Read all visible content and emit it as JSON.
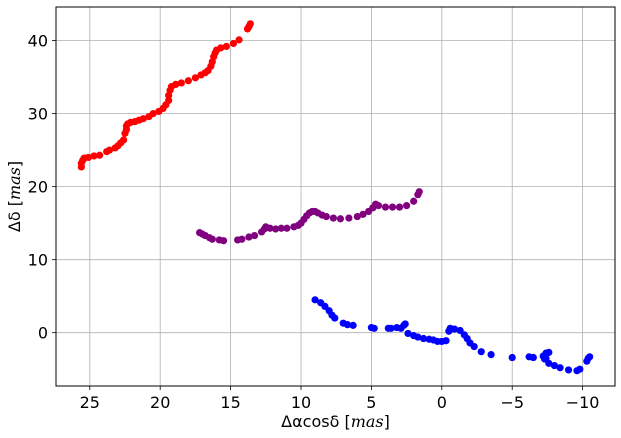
{
  "chart_data": {
    "type": "scatter",
    "title": "",
    "xlabel": {
      "prefix": "Δα",
      "mid": "cosδ",
      "unit": "mas"
    },
    "ylabel": {
      "prefix": "Δδ",
      "unit": "mas"
    },
    "x_inverted": true,
    "xlim": [
      27.4,
      -12.3
    ],
    "ylim": [
      -7.3,
      44.6
    ],
    "xticks": [
      25,
      20,
      15,
      10,
      5,
      0,
      -5,
      -10
    ],
    "xtick_labels": [
      "25",
      "20",
      "15",
      "10",
      "5",
      "0",
      "−5",
      "−10"
    ],
    "yticks": [
      0,
      10,
      20,
      30,
      40
    ],
    "ytick_labels": [
      "0",
      "10",
      "20",
      "30",
      "40"
    ],
    "grid": true,
    "legend": "none",
    "series": [
      {
        "color": "#ff0000",
        "points": [
          [
            25.6,
            22.7
          ],
          [
            25.6,
            23.2
          ],
          [
            25.5,
            23.6
          ],
          [
            25.4,
            23.9
          ],
          [
            25.1,
            24.0
          ],
          [
            24.7,
            24.2
          ],
          [
            24.3,
            24.3
          ],
          [
            23.8,
            24.8
          ],
          [
            23.6,
            25.0
          ],
          [
            23.2,
            25.3
          ],
          [
            23.0,
            25.6
          ],
          [
            22.8,
            26.0
          ],
          [
            22.6,
            26.4
          ],
          [
            22.5,
            27.3
          ],
          [
            22.4,
            27.8
          ],
          [
            22.4,
            28.3
          ],
          [
            22.3,
            28.6
          ],
          [
            22.1,
            28.8
          ],
          [
            21.8,
            28.9
          ],
          [
            21.5,
            29.1
          ],
          [
            21.2,
            29.3
          ],
          [
            20.8,
            29.6
          ],
          [
            20.5,
            30.0
          ],
          [
            20.1,
            30.3
          ],
          [
            19.8,
            30.7
          ],
          [
            19.6,
            31.2
          ],
          [
            19.4,
            31.8
          ],
          [
            19.4,
            32.5
          ],
          [
            19.3,
            33.2
          ],
          [
            19.2,
            33.7
          ],
          [
            18.9,
            34.0
          ],
          [
            18.5,
            34.2
          ],
          [
            18.0,
            34.5
          ],
          [
            17.5,
            34.9
          ],
          [
            17.1,
            35.3
          ],
          [
            16.8,
            35.6
          ],
          [
            16.6,
            35.9
          ],
          [
            16.4,
            36.5
          ],
          [
            16.3,
            37.1
          ],
          [
            16.2,
            37.8
          ],
          [
            16.1,
            38.3
          ],
          [
            16.0,
            38.7
          ],
          [
            15.7,
            39.0
          ],
          [
            15.3,
            39.2
          ],
          [
            14.8,
            39.6
          ],
          [
            14.4,
            40.1
          ],
          [
            13.8,
            41.6
          ],
          [
            13.7,
            41.9
          ],
          [
            13.6,
            42.3
          ]
        ]
      },
      {
        "color": "#800080",
        "points": [
          [
            17.2,
            13.7
          ],
          [
            17.0,
            13.5
          ],
          [
            16.8,
            13.3
          ],
          [
            16.5,
            13.0
          ],
          [
            16.3,
            12.8
          ],
          [
            15.8,
            12.7
          ],
          [
            15.5,
            12.6
          ],
          [
            14.5,
            12.7
          ],
          [
            14.2,
            12.8
          ],
          [
            13.7,
            13.1
          ],
          [
            13.3,
            13.3
          ],
          [
            12.8,
            13.8
          ],
          [
            12.6,
            14.2
          ],
          [
            12.5,
            14.5
          ],
          [
            12.2,
            14.3
          ],
          [
            11.8,
            14.2
          ],
          [
            11.4,
            14.3
          ],
          [
            11.0,
            14.3
          ],
          [
            10.5,
            14.5
          ],
          [
            10.2,
            14.7
          ],
          [
            10.0,
            15.0
          ],
          [
            9.8,
            15.5
          ],
          [
            9.6,
            16.0
          ],
          [
            9.4,
            16.4
          ],
          [
            9.2,
            16.6
          ],
          [
            9.0,
            16.6
          ],
          [
            8.8,
            16.4
          ],
          [
            8.5,
            16.1
          ],
          [
            8.2,
            15.9
          ],
          [
            7.7,
            15.7
          ],
          [
            7.2,
            15.6
          ],
          [
            6.6,
            15.7
          ],
          [
            6.0,
            15.9
          ],
          [
            5.6,
            16.2
          ],
          [
            5.2,
            16.6
          ],
          [
            4.9,
            17.1
          ],
          [
            4.7,
            17.6
          ],
          [
            4.5,
            17.4
          ],
          [
            4.0,
            17.2
          ],
          [
            3.5,
            17.2
          ],
          [
            3.0,
            17.2
          ],
          [
            2.5,
            17.4
          ],
          [
            2.0,
            18.0
          ],
          [
            1.7,
            18.9
          ],
          [
            1.6,
            19.3
          ]
        ]
      },
      {
        "color": "#0000ff",
        "points": [
          [
            9.0,
            4.5
          ],
          [
            8.6,
            4.1
          ],
          [
            8.3,
            3.6
          ],
          [
            8.0,
            3.0
          ],
          [
            7.8,
            2.4
          ],
          [
            7.6,
            2.0
          ],
          [
            7.0,
            1.3
          ],
          [
            6.7,
            1.1
          ],
          [
            6.3,
            1.0
          ],
          [
            5.0,
            0.7
          ],
          [
            4.8,
            0.6
          ],
          [
            3.8,
            0.6
          ],
          [
            3.6,
            0.6
          ],
          [
            3.2,
            0.7
          ],
          [
            2.9,
            0.6
          ],
          [
            2.7,
            1.0
          ],
          [
            2.6,
            1.2
          ],
          [
            2.4,
            -0.1
          ],
          [
            2.0,
            -0.4
          ],
          [
            1.7,
            -0.6
          ],
          [
            1.3,
            -0.8
          ],
          [
            0.9,
            -0.9
          ],
          [
            0.6,
            -1.0
          ],
          [
            0.3,
            -1.2
          ],
          [
            0.0,
            -1.2
          ],
          [
            -0.3,
            -1.1
          ],
          [
            -0.5,
            0.2
          ],
          [
            -0.6,
            0.6
          ],
          [
            -0.9,
            0.5
          ],
          [
            -1.3,
            0.3
          ],
          [
            -1.6,
            -0.3
          ],
          [
            -1.8,
            -0.8
          ],
          [
            -2.0,
            -1.4
          ],
          [
            -2.3,
            -1.9
          ],
          [
            -2.8,
            -2.6
          ],
          [
            -3.5,
            -3.0
          ],
          [
            -5.0,
            -3.4
          ],
          [
            -6.2,
            -3.3
          ],
          [
            -6.5,
            -3.4
          ],
          [
            -7.3,
            -3.6
          ],
          [
            -7.4,
            -2.8
          ],
          [
            -7.6,
            -2.7
          ],
          [
            -7.2,
            -3.2
          ],
          [
            -7.4,
            -3.5
          ],
          [
            -7.6,
            -4.2
          ],
          [
            -8.0,
            -4.5
          ],
          [
            -8.4,
            -4.8
          ],
          [
            -9.0,
            -5.1
          ],
          [
            -9.6,
            -5.2
          ],
          [
            -9.8,
            -5.0
          ],
          [
            -10.3,
            -3.9
          ],
          [
            -10.4,
            -3.5
          ],
          [
            -10.5,
            -3.3
          ]
        ]
      }
    ]
  }
}
